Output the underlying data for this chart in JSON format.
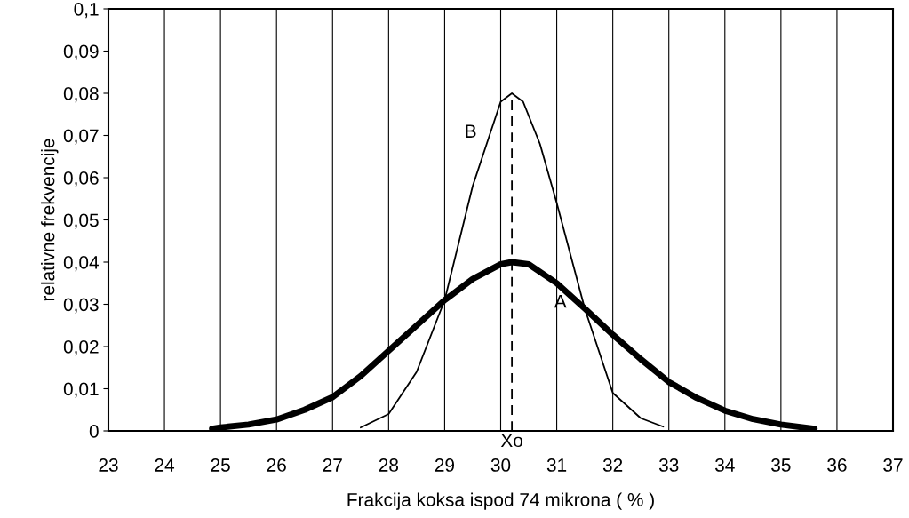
{
  "chart_data": {
    "type": "line",
    "xlabel": "Frakcija koksa ispod 74 mikrona ( % )",
    "ylabel": "relativne frekvencije",
    "series": [
      {
        "color": "#000000",
        "x": [
          24.85,
          25,
          25.5,
          26,
          26.5,
          27,
          27.5,
          28,
          28.5,
          29,
          29.5,
          30,
          30.2,
          30.5,
          31,
          31.5,
          32,
          32.5,
          33,
          33.5,
          34,
          34.5,
          35,
          35.6
        ],
        "values": [
          0.0005,
          0.0008,
          0.0015,
          0.0027,
          0.005,
          0.008,
          0.013,
          0.019,
          0.025,
          0.031,
          0.036,
          0.0395,
          0.04,
          0.0395,
          0.035,
          0.029,
          0.0228,
          0.017,
          0.0116,
          0.0078,
          0.0048,
          0.0028,
          0.0015,
          0.0005
        ]
      },
      {
        "color": "#000000",
        "x": [
          27.5,
          28,
          28.5,
          29,
          29.5,
          29.75,
          30,
          30.2,
          30.4,
          30.7,
          31,
          31.5,
          32,
          32.5,
          32.9
        ],
        "values": [
          0.0008,
          0.004,
          0.014,
          0.031,
          0.058,
          0.068,
          0.078,
          0.08,
          0.078,
          0.068,
          0.054,
          0.029,
          0.009,
          0.003,
          0.001
        ]
      },
      {
        "color": "#000000",
        "x": [
          30.2,
          30.2
        ],
        "values": [
          0,
          0.08
        ],
        "line_style": "dashed"
      }
    ],
    "annotations": [
      {
        "text": "B",
        "x": 29.75,
        "y": 0.068
      },
      {
        "text": "A",
        "x": 31,
        "y": 0.035
      },
      {
        "text": "Xo",
        "x": 30.2,
        "y": 0
      }
    ],
    "xlim": [
      23,
      37
    ],
    "xticks": [
      23,
      24,
      25,
      26,
      27,
      28,
      29,
      30,
      31,
      32,
      33,
      34,
      35,
      36,
      37
    ],
    "ylim": [
      0,
      0.1
    ],
    "yticks": [
      0,
      {
        "value": 0.01,
        "label": "0,01"
      },
      {
        "value": 0.02,
        "label": "0,02"
      },
      {
        "value": 0.03,
        "label": "0,03"
      },
      {
        "value": 0.04,
        "label": "0,04"
      },
      {
        "value": 0.05,
        "label": "0,05"
      },
      {
        "value": 0.06,
        "label": "0,06"
      },
      {
        "value": 0.07,
        "label": "0,07"
      },
      {
        "value": 0.08,
        "label": "0,08"
      },
      {
        "value": 0.09,
        "label": "0,09"
      },
      {
        "value": 0.1,
        "label": "0,1"
      }
    ],
    "grid": "x",
    "line_style": "solid",
    "marker": "none"
  }
}
